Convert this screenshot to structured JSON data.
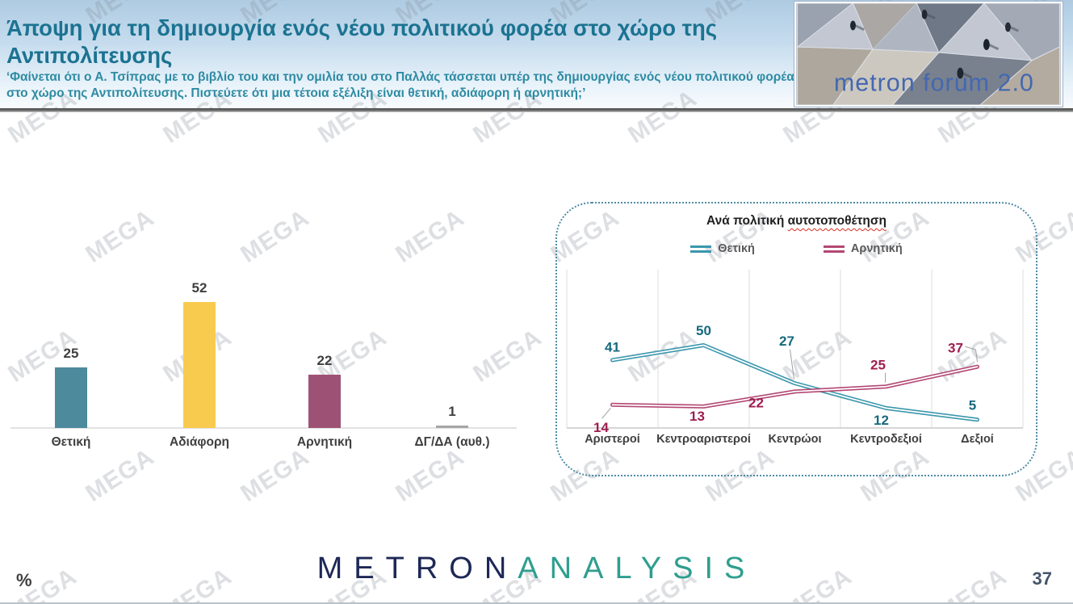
{
  "header": {
    "title": "Άποψη για τη δημιουργία ενός νέου πολιτικού φορέα στο χώρο της Αντιπολίτευσης",
    "question": "‘Φαίνεται ότι ο Α. Τσίπρας με το βιβλίο του και την ομιλία του στο Παλλάς τάσσεται υπέρ της δημιουργίας ενός νέου πολιτικού φορέα στο χώρο της Αντιπολίτευσης. Πιστεύετε ότι μια τέτοια εξέλιξη είναι θετική, αδιάφορη ή αρνητική;’",
    "logo_text": "metron forum 2.0"
  },
  "watermark": {
    "text": "MEGA"
  },
  "chart_data": [
    {
      "type": "bar",
      "title": "",
      "categories": [
        "Θετική",
        "Αδιάφορη",
        "Αρνητική",
        "ΔΓ/ΔΑ (αυθ.)"
      ],
      "values": [
        25,
        52,
        22,
        1
      ],
      "colors": [
        "#4d8a9c",
        "#f8cb4f",
        "#9d5275",
        "#a6a6a6"
      ],
      "ylim": [
        0,
        60
      ],
      "grid": false,
      "value_labels": true,
      "label_color": "#3f3f3f"
    },
    {
      "type": "line",
      "title": "Ανά πολιτική αυτοτοποθέτηση",
      "title_head": "Ανά πολιτική",
      "title_tail": "αυτοτοποθέτηση",
      "categories": [
        "Αριστεροί",
        "Κεντροαριστεροί",
        "Κεντρώοι",
        "Κεντροδεξιοί",
        "Δεξιοί"
      ],
      "series": [
        {
          "name": "Θετική",
          "values": [
            41,
            50,
            27,
            12,
            5
          ],
          "color": "#3b97ad",
          "label_color": "#16697e",
          "label_offsets": [
            [
              0,
              -16
            ],
            [
              0,
              -18
            ],
            [
              -10,
              -52
            ],
            [
              -6,
              15
            ],
            [
              -6,
              -18
            ]
          ],
          "leaders": [
            null,
            null,
            [
              [
                -6,
                -42
              ],
              [
                -1,
                -5
              ]
            ],
            null,
            null
          ]
        },
        {
          "name": "Αρνητική",
          "values": [
            14,
            13,
            22,
            25,
            37
          ],
          "color": "#b34874",
          "label_color": "#9e1e50",
          "label_offsets": [
            [
              -14,
              28
            ],
            [
              -8,
              12
            ],
            [
              -48,
              14
            ],
            [
              -10,
              -27
            ],
            [
              -27,
              -23
            ]
          ],
          "leaders": [
            [
              [
                -13,
                17
              ],
              [
                -2,
                4
              ]
            ],
            null,
            null,
            [
              [
                -1,
                -17
              ],
              [
                -1,
                -5
              ]
            ],
            [
              [
                -15,
                -25
              ],
              [
                -2,
                -21
              ],
              [
                0,
                -6
              ]
            ]
          ]
        }
      ],
      "legend_position": "top",
      "grid": "vertical",
      "ylim": [
        0,
        55
      ]
    }
  ],
  "footer": {
    "percent_label": "%",
    "logo_part1": "METRON",
    "logo_part2": "ANALYSIS",
    "page_number": "37"
  }
}
